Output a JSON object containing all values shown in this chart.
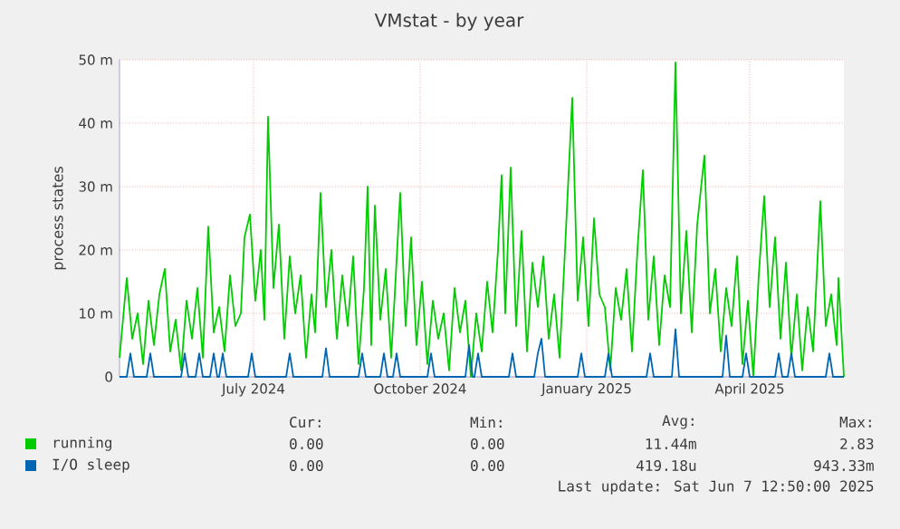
{
  "chart_data": {
    "type": "line",
    "title": "VMstat - by year",
    "ylabel": "process states",
    "xlim": [
      "2024-05-03",
      "2025-06-07"
    ],
    "xticks": [
      {
        "value": "2024-07-16",
        "label": "July 2024"
      },
      {
        "value": "2024-10-16",
        "label": "October 2024"
      },
      {
        "value": "2025-01-16",
        "label": "January 2025"
      },
      {
        "value": "2025-04-16",
        "label": "April 2025"
      }
    ],
    "ylim": [
      0,
      50
    ],
    "yticks": [
      0,
      {
        "value": 10,
        "label": "10 m"
      },
      {
        "value": 20,
        "label": "20 m"
      },
      {
        "value": 30,
        "label": "30 m"
      },
      {
        "value": 40,
        "label": "40 m"
      },
      {
        "value": 50,
        "label": "50 m"
      }
    ],
    "grid": true,
    "legend": "bottom",
    "marker": "none",
    "line_style": "solid",
    "series": [
      {
        "name": "running",
        "color": "#00cc00",
        "x": [
          "2024-05-03",
          "2024-05-07",
          "2024-05-10",
          "2024-05-13",
          "2024-05-16",
          "2024-05-19",
          "2024-05-22",
          "2024-05-25",
          "2024-05-28",
          "2024-05-31",
          "2024-06-03",
          "2024-06-06",
          "2024-06-09",
          "2024-06-12",
          "2024-06-15",
          "2024-06-18",
          "2024-06-21",
          "2024-06-24",
          "2024-06-27",
          "2024-06-30",
          "2024-07-03",
          "2024-07-06",
          "2024-07-09",
          "2024-07-11",
          "2024-07-14",
          "2024-07-17",
          "2024-07-20",
          "2024-07-22",
          "2024-07-24",
          "2024-07-27",
          "2024-07-30",
          "2024-08-02",
          "2024-08-05",
          "2024-08-08",
          "2024-08-11",
          "2024-08-14",
          "2024-08-17",
          "2024-08-19",
          "2024-08-22",
          "2024-08-25",
          "2024-08-28",
          "2024-08-31",
          "2024-09-03",
          "2024-09-06",
          "2024-09-09",
          "2024-09-12",
          "2024-09-15",
          "2024-09-17",
          "2024-09-19",
          "2024-09-21",
          "2024-09-24",
          "2024-09-27",
          "2024-09-30",
          "2024-10-02",
          "2024-10-05",
          "2024-10-08",
          "2024-10-11",
          "2024-10-14",
          "2024-10-17",
          "2024-10-20",
          "2024-10-23",
          "2024-10-26",
          "2024-10-29",
          "2024-11-01",
          "2024-11-04",
          "2024-11-07",
          "2024-11-10",
          "2024-11-13",
          "2024-11-16",
          "2024-11-19",
          "2024-11-22",
          "2024-11-25",
          "2024-11-28",
          "2024-11-30",
          "2024-12-02",
          "2024-12-05",
          "2024-12-08",
          "2024-12-11",
          "2024-12-14",
          "2024-12-17",
          "2024-12-20",
          "2024-12-23",
          "2024-12-26",
          "2024-12-29",
          "2025-01-01",
          "2025-01-04",
          "2025-01-08",
          "2025-01-11",
          "2025-01-14",
          "2025-01-17",
          "2025-01-20",
          "2025-01-23",
          "2025-01-26",
          "2025-01-29",
          "2025-02-01",
          "2025-02-04",
          "2025-02-07",
          "2025-02-10",
          "2025-02-13",
          "2025-02-16",
          "2025-02-19",
          "2025-02-22",
          "2025-02-25",
          "2025-02-28",
          "2025-03-03",
          "2025-03-06",
          "2025-03-09",
          "2025-03-12",
          "2025-03-15",
          "2025-03-18",
          "2025-03-22",
          "2025-03-25",
          "2025-03-28",
          "2025-03-31",
          "2025-04-03",
          "2025-04-06",
          "2025-04-09",
          "2025-04-12",
          "2025-04-15",
          "2025-04-18",
          "2025-04-21",
          "2025-04-24",
          "2025-04-27",
          "2025-04-30",
          "2025-05-03",
          "2025-05-06",
          "2025-05-09",
          "2025-05-12",
          "2025-05-15",
          "2025-05-18",
          "2025-05-21",
          "2025-05-25",
          "2025-05-28",
          "2025-05-31",
          "2025-06-03",
          "2025-06-04",
          "2025-06-07"
        ],
        "values": [
          3,
          15.6,
          6,
          10,
          2,
          12,
          5,
          13,
          17,
          4,
          9,
          1,
          12,
          6,
          14,
          3,
          23.7,
          7,
          11,
          4,
          16,
          8,
          10,
          22,
          25.6,
          12,
          20,
          9,
          41,
          14,
          24,
          6,
          19,
          10,
          16,
          3,
          13,
          7,
          29,
          11,
          20,
          6,
          16,
          8,
          19,
          2,
          14,
          30,
          5,
          27,
          9,
          17,
          3,
          13,
          29,
          8,
          22,
          5,
          15,
          2,
          12,
          6,
          10,
          1,
          14,
          7,
          12,
          0,
          10,
          4,
          15,
          7,
          20,
          31.8,
          10,
          33,
          8,
          23,
          4,
          18,
          11,
          19,
          6,
          13,
          3,
          20,
          44,
          12,
          22,
          8,
          25,
          13,
          11,
          1,
          14,
          9,
          17,
          4,
          20,
          32.6,
          9,
          19,
          5,
          16,
          11,
          49.6,
          10,
          23,
          7,
          24,
          34.9,
          10,
          17,
          4,
          14,
          8,
          19,
          2,
          12,
          0,
          16,
          28.5,
          11,
          22,
          6,
          18,
          3,
          13,
          1,
          11,
          4,
          27.7,
          8,
          13,
          5,
          15.6,
          0
        ]
      },
      {
        "name": "I/O sleep",
        "color": "#0066b3",
        "x": [
          "2024-05-03",
          "2024-05-07",
          "2024-05-09",
          "2024-05-11",
          "2024-05-18",
          "2024-05-20",
          "2024-05-22",
          "2024-06-06",
          "2024-06-08",
          "2024-06-10",
          "2024-06-14",
          "2024-06-16",
          "2024-06-18",
          "2024-06-22",
          "2024-06-24",
          "2024-06-26",
          "2024-06-27",
          "2024-06-29",
          "2024-07-01",
          "2024-07-13",
          "2024-07-15",
          "2024-07-17",
          "2024-08-03",
          "2024-08-05",
          "2024-08-07",
          "2024-08-23",
          "2024-08-25",
          "2024-08-27",
          "2024-09-12",
          "2024-09-14",
          "2024-09-16",
          "2024-09-24",
          "2024-09-26",
          "2024-09-28",
          "2024-10-01",
          "2024-10-03",
          "2024-10-05",
          "2024-10-20",
          "2024-10-22",
          "2024-10-24",
          "2024-11-10",
          "2024-11-12",
          "2024-11-14",
          "2024-11-15",
          "2024-11-17",
          "2024-11-19",
          "2024-12-04",
          "2024-12-06",
          "2024-12-08",
          "2024-12-18",
          "2024-12-20",
          "2024-12-22",
          "2024-12-24",
          "2024-12-26",
          "2025-01-11",
          "2025-01-13",
          "2025-01-15",
          "2025-01-26",
          "2025-01-28",
          "2025-01-30",
          "2025-02-18",
          "2025-02-20",
          "2025-02-22",
          "2025-03-04",
          "2025-03-06",
          "2025-03-08",
          "2025-04-01",
          "2025-04-03",
          "2025-04-05",
          "2025-04-12",
          "2025-04-14",
          "2025-04-16",
          "2025-04-30",
          "2025-05-02",
          "2025-05-04",
          "2025-05-07",
          "2025-05-09",
          "2025-05-11",
          "2025-05-28",
          "2025-05-30",
          "2025-06-01",
          "2025-06-07"
        ],
        "values": [
          0,
          0,
          3.7,
          0,
          0,
          3.7,
          0,
          0,
          3.7,
          0,
          0,
          3.7,
          0,
          0,
          3.7,
          0,
          0,
          3.7,
          0,
          0,
          3.7,
          0,
          0,
          3.7,
          0,
          0,
          4.5,
          0,
          0,
          3.7,
          0,
          0,
          3.7,
          0,
          0,
          3.7,
          0,
          0,
          3.7,
          0,
          0,
          5,
          0,
          0,
          3.7,
          0,
          0,
          3.7,
          0,
          0,
          3.7,
          6,
          0,
          0,
          0,
          3.7,
          0,
          0,
          3.7,
          0,
          0,
          3.7,
          0,
          0,
          7.5,
          0,
          0,
          6.5,
          0,
          0,
          3.7,
          0,
          0,
          3.7,
          0,
          0,
          3.7,
          0,
          0,
          3.7,
          0,
          0
        ]
      }
    ],
    "annotations": [
      "Cur:",
      "Min:",
      "Avg:",
      "Max:",
      "0.00",
      "0.00",
      "11.44m",
      "2.83",
      "0.00",
      "0.00",
      "419.18u",
      "943.33m",
      "Last update:  Sat Jun  7 12:50:00 2025"
    ]
  }
}
